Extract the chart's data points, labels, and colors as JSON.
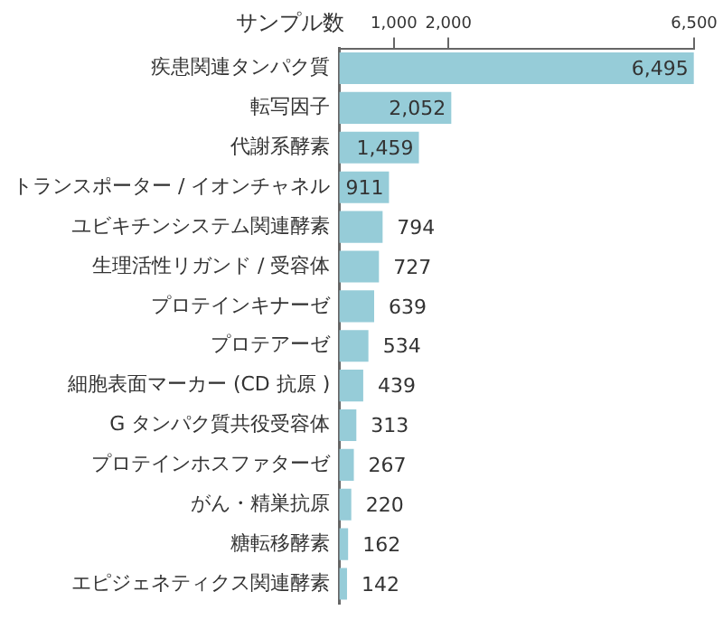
{
  "chart_data": {
    "type": "bar",
    "orientation": "horizontal",
    "xlabel": "サンプル数",
    "categories": [
      "疾患関連タンパク質",
      "転写因子",
      "代謝系酵素",
      "トランスポーター / イオンチャネル",
      "ユビキチンシステム関連酵素",
      "生理活性リガンド / 受容体",
      "プロテインキナーゼ",
      "プロテアーゼ",
      "細胞表面マーカー (CD 抗原 )",
      "G タンパク質共役受容体",
      "プロテインホスファターゼ",
      "がん・精巣抗原",
      "糖転移酵素",
      "エピジェネティクス関連酵素"
    ],
    "values": [
      6495,
      2052,
      1459,
      911,
      794,
      727,
      639,
      534,
      439,
      313,
      267,
      220,
      162,
      142
    ],
    "value_labels": [
      "6,495",
      "2,052",
      "1,459",
      "911",
      "794",
      "727",
      "639",
      "534",
      "439",
      "313",
      "267",
      "220",
      "162",
      "142"
    ],
    "color": "#96ccd8",
    "xlim": [
      0,
      6500
    ],
    "xticks": [
      {
        "value": 1000,
        "label": "1,000"
      },
      {
        "value": 2000,
        "label": "2,000"
      },
      {
        "value": 6500,
        "label": "6,500"
      }
    ],
    "grid": false,
    "legend": false
  }
}
